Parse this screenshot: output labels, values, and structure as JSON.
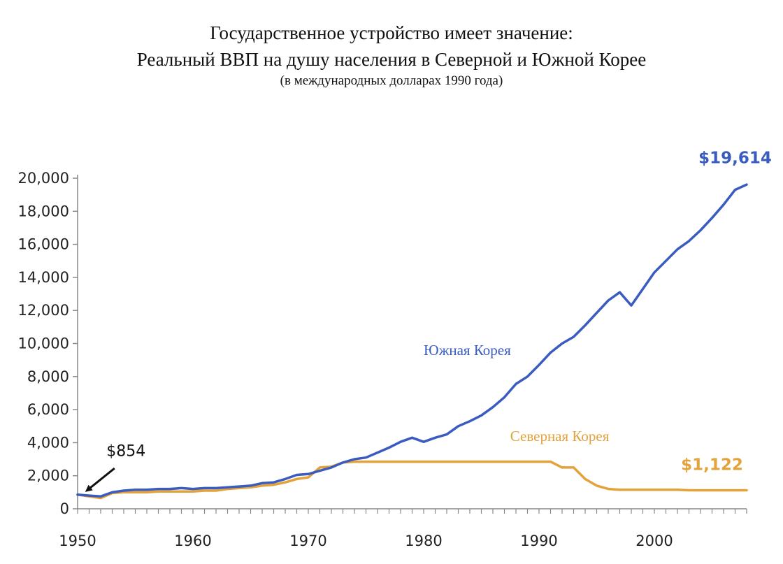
{
  "chart_data": {
    "type": "line",
    "title": "Государственное устройство имеет значение:",
    "subtitle": "Реальный ВВП на душу населения в Северной и Южной Корее",
    "subtitle2": "(в международных долларах 1990 года)",
    "ylim": [
      0,
      20000
    ],
    "xlim": [
      1950,
      2008
    ],
    "y_ticks": [
      "0",
      "2,000",
      "4,000",
      "6,000",
      "8,000",
      "10,000",
      "12,000",
      "14,000",
      "16,000",
      "18,000",
      "20,000"
    ],
    "y_tick_values": [
      0,
      2000,
      4000,
      6000,
      8000,
      10000,
      12000,
      14000,
      16000,
      18000,
      20000
    ],
    "x_ticks": [
      "1950",
      "1960",
      "1970",
      "1980",
      "1990",
      "2000"
    ],
    "x_tick_values": [
      1950,
      1960,
      1970,
      1980,
      1990,
      2000
    ],
    "grid": false,
    "series": [
      {
        "name": "Южная Корея",
        "color": "#3a5bbf",
        "x": [
          1950,
          1951,
          1952,
          1953,
          1954,
          1955,
          1956,
          1957,
          1958,
          1959,
          1960,
          1961,
          1962,
          1963,
          1964,
          1965,
          1966,
          1967,
          1968,
          1969,
          1970,
          1971,
          1972,
          1973,
          1974,
          1975,
          1976,
          1977,
          1978,
          1979,
          1980,
          1981,
          1982,
          1983,
          1984,
          1985,
          1986,
          1987,
          1988,
          1989,
          1990,
          1991,
          1992,
          1993,
          1994,
          1995,
          1996,
          1997,
          1998,
          1999,
          2000,
          2001,
          2002,
          2003,
          2004,
          2005,
          2006,
          2007,
          2008
        ],
        "values": [
          854,
          800,
          750,
          1000,
          1100,
          1150,
          1150,
          1200,
          1200,
          1250,
          1200,
          1250,
          1250,
          1300,
          1350,
          1400,
          1550,
          1600,
          1800,
          2050,
          2100,
          2300,
          2500,
          2800,
          3000,
          3100,
          3400,
          3700,
          4050,
          4300,
          4050,
          4300,
          4500,
          5000,
          5300,
          5650,
          6150,
          6750,
          7550,
          8000,
          8700,
          9450,
          10000,
          10400,
          11100,
          11850,
          12600,
          13100,
          12300,
          13300,
          14300,
          15000,
          15700,
          16200,
          16850,
          17600,
          18400,
          19300,
          19614
        ]
      },
      {
        "name": "Северная Корея",
        "color": "#e3a23a",
        "x": [
          1950,
          1951,
          1952,
          1953,
          1954,
          1955,
          1956,
          1957,
          1958,
          1959,
          1960,
          1961,
          1962,
          1963,
          1964,
          1965,
          1966,
          1967,
          1968,
          1969,
          1970,
          1971,
          1972,
          1973,
          1974,
          1975,
          1976,
          1977,
          1978,
          1979,
          1980,
          1981,
          1982,
          1983,
          1984,
          1985,
          1986,
          1987,
          1988,
          1989,
          1990,
          1991,
          1992,
          1993,
          1994,
          1995,
          1996,
          1997,
          1998,
          1999,
          2000,
          2001,
          2002,
          2003,
          2004,
          2005,
          2006,
          2007,
          2008
        ],
        "values": [
          854,
          750,
          650,
          950,
          1000,
          1000,
          1000,
          1050,
          1050,
          1050,
          1050,
          1100,
          1100,
          1200,
          1250,
          1300,
          1400,
          1450,
          1600,
          1800,
          1900,
          2500,
          2550,
          2800,
          2850,
          2850,
          2850,
          2850,
          2850,
          2850,
          2850,
          2850,
          2850,
          2850,
          2850,
          2850,
          2850,
          2850,
          2850,
          2850,
          2850,
          2850,
          2500,
          2500,
          1800,
          1400,
          1200,
          1150,
          1150,
          1150,
          1150,
          1150,
          1150,
          1122,
          1122,
          1122,
          1122,
          1122,
          1122
        ]
      }
    ],
    "annotations": {
      "start_value": "$854",
      "south_end_value": "$19,614",
      "north_end_value": "$1,122"
    }
  }
}
